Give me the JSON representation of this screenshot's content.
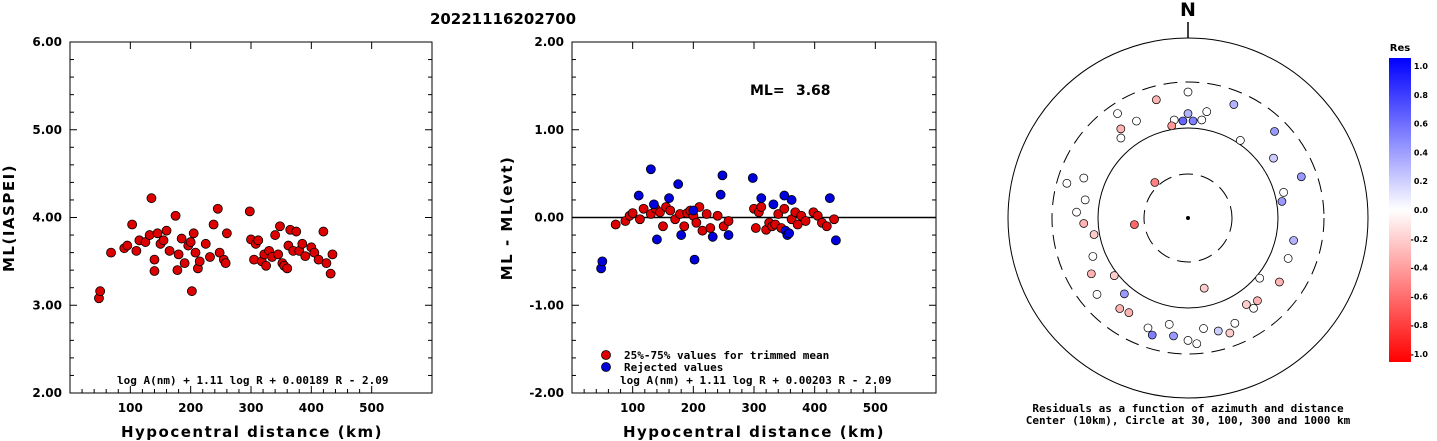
{
  "event_id": "20221116202700",
  "chart_data": [
    {
      "type": "scatter",
      "ylabel": "ML(IASPEI)",
      "xlabel": "Hypocentral distance (km)",
      "xlim": [
        0,
        600
      ],
      "ylim": [
        2.0,
        6.0
      ],
      "x_ticks": [
        "100",
        "200",
        "300",
        "400",
        "500"
      ],
      "y_ticks": [
        "2.00",
        "3.00",
        "4.00",
        "5.00",
        "6.00"
      ],
      "formula": "log A(nm) + 1.11 log R + 0.00189 R - 2.09",
      "points": [
        [
          48,
          3.08
        ],
        [
          50,
          3.16
        ],
        [
          68,
          3.6
        ],
        [
          90,
          3.65
        ],
        [
          95,
          3.68
        ],
        [
          103,
          3.92
        ],
        [
          110,
          3.62
        ],
        [
          115,
          3.74
        ],
        [
          125,
          3.72
        ],
        [
          132,
          3.8
        ],
        [
          135,
          4.22
        ],
        [
          140,
          3.52
        ],
        [
          140,
          3.39
        ],
        [
          145,
          3.82
        ],
        [
          150,
          3.7
        ],
        [
          155,
          3.74
        ],
        [
          160,
          3.85
        ],
        [
          165,
          3.62
        ],
        [
          175,
          4.02
        ],
        [
          178,
          3.4
        ],
        [
          180,
          3.58
        ],
        [
          185,
          3.76
        ],
        [
          190,
          3.48
        ],
        [
          196,
          3.68
        ],
        [
          200,
          3.72
        ],
        [
          202,
          3.16
        ],
        [
          205,
          3.82
        ],
        [
          208,
          3.6
        ],
        [
          212,
          3.42
        ],
        [
          215,
          3.5
        ],
        [
          225,
          3.7
        ],
        [
          232,
          3.55
        ],
        [
          238,
          3.92
        ],
        [
          245,
          4.1
        ],
        [
          248,
          3.6
        ],
        [
          255,
          3.52
        ],
        [
          258,
          3.48
        ],
        [
          260,
          3.82
        ],
        [
          298,
          4.07
        ],
        [
          300,
          3.75
        ],
        [
          305,
          3.52
        ],
        [
          308,
          3.7
        ],
        [
          312,
          3.74
        ],
        [
          318,
          3.5
        ],
        [
          322,
          3.58
        ],
        [
          325,
          3.45
        ],
        [
          330,
          3.62
        ],
        [
          335,
          3.55
        ],
        [
          340,
          3.8
        ],
        [
          345,
          3.58
        ],
        [
          348,
          3.9
        ],
        [
          352,
          3.48
        ],
        [
          355,
          3.45
        ],
        [
          360,
          3.42
        ],
        [
          362,
          3.68
        ],
        [
          365,
          3.86
        ],
        [
          370,
          3.62
        ],
        [
          375,
          3.84
        ],
        [
          380,
          3.62
        ],
        [
          385,
          3.7
        ],
        [
          390,
          3.56
        ],
        [
          400,
          3.66
        ],
        [
          405,
          3.6
        ],
        [
          412,
          3.52
        ],
        [
          420,
          3.84
        ],
        [
          425,
          3.48
        ],
        [
          432,
          3.36
        ],
        [
          435,
          3.58
        ]
      ]
    },
    {
      "type": "scatter",
      "ylabel": "ML - ML(evt)",
      "xlabel": "Hypocentral distance (km)",
      "xlim": [
        0,
        600
      ],
      "ylim": [
        -2.0,
        2.0
      ],
      "x_ticks": [
        "100",
        "200",
        "300",
        "400",
        "500"
      ],
      "y_ticks": [
        "-2.00",
        "-1.00",
        "0.00",
        "1.00",
        "2.00"
      ],
      "ml_label": "ML=",
      "ml_value": "3.68",
      "formula": "log A(nm) + 1.11 log R + 0.00203 R - 2.09",
      "reference_line": 0.0,
      "series": [
        {
          "name": "25%-75% values for trimmed mean",
          "color": "#dd0000",
          "points": [
            [
              72,
              -0.08
            ],
            [
              88,
              -0.04
            ],
            [
              95,
              0.02
            ],
            [
              100,
              0.05
            ],
            [
              112,
              -0.02
            ],
            [
              118,
              0.1
            ],
            [
              130,
              0.04
            ],
            [
              138,
              0.1
            ],
            [
              145,
              0.06
            ],
            [
              150,
              -0.1
            ],
            [
              155,
              0.12
            ],
            [
              162,
              0.08
            ],
            [
              170,
              -0.02
            ],
            [
              178,
              0.04
            ],
            [
              185,
              -0.1
            ],
            [
              190,
              0.05
            ],
            [
              195,
              0.08
            ],
            [
              200,
              0.02
            ],
            [
              205,
              -0.06
            ],
            [
              210,
              0.12
            ],
            [
              215,
              -0.15
            ],
            [
              222,
              0.04
            ],
            [
              228,
              -0.12
            ],
            [
              240,
              0.02
            ],
            [
              250,
              -0.1
            ],
            [
              258,
              -0.04
            ],
            [
              300,
              0.1
            ],
            [
              303,
              -0.12
            ],
            [
              308,
              0.06
            ],
            [
              312,
              0.12
            ],
            [
              320,
              -0.14
            ],
            [
              325,
              -0.06
            ],
            [
              330,
              -0.1
            ],
            [
              335,
              -0.08
            ],
            [
              340,
              0.04
            ],
            [
              345,
              -0.12
            ],
            [
              350,
              0.1
            ],
            [
              362,
              -0.02
            ],
            [
              368,
              0.06
            ],
            [
              372,
              -0.08
            ],
            [
              378,
              0.02
            ],
            [
              385,
              -0.04
            ],
            [
              398,
              0.06
            ],
            [
              405,
              0.02
            ],
            [
              412,
              -0.06
            ],
            [
              420,
              -0.1
            ],
            [
              432,
              -0.02
            ]
          ]
        },
        {
          "name": "Rejected values",
          "color": "#0000dd",
          "points": [
            [
              48,
              -0.58
            ],
            [
              50,
              -0.5
            ],
            [
              110,
              0.25
            ],
            [
              130,
              0.55
            ],
            [
              135,
              0.15
            ],
            [
              140,
              -0.25
            ],
            [
              160,
              0.22
            ],
            [
              175,
              0.38
            ],
            [
              180,
              -0.2
            ],
            [
              200,
              0.08
            ],
            [
              202,
              -0.48
            ],
            [
              232,
              -0.22
            ],
            [
              245,
              0.26
            ],
            [
              248,
              0.48
            ],
            [
              258,
              -0.2
            ],
            [
              298,
              0.45
            ],
            [
              312,
              0.22
            ],
            [
              332,
              0.15
            ],
            [
              350,
              0.25
            ],
            [
              352,
              -0.15
            ],
            [
              355,
              -0.2
            ],
            [
              358,
              -0.18
            ],
            [
              362,
              0.2
            ],
            [
              425,
              0.22
            ],
            [
              435,
              -0.26
            ]
          ]
        }
      ]
    },
    {
      "type": "polar-scatter",
      "north_label": "N",
      "caption_line1": "Residuals as a function of azimuth and distance",
      "caption_line2": "Center (10km), Circle at 30, 100, 300 and 1000 km",
      "colorbar": {
        "title": "Res",
        "ticks": [
          "1.0",
          "0.8",
          "0.6",
          "0.4",
          "0.2",
          "0.0",
          "-0.2",
          "-0.4",
          "-0.6",
          "-0.8",
          "-1.0"
        ],
        "max_color": "#0000ff",
        "zero_color": "#ffffff",
        "min_color": "#ff0000"
      },
      "rings_km": [
        30,
        100,
        300,
        1000
      ],
      "stations": [
        {
          "az": 0,
          "r": 0.7,
          "res": 0.0
        },
        {
          "az": 3,
          "r": 0.54,
          "res": 0.5
        },
        {
          "az": -3,
          "r": 0.54,
          "res": 0.6
        },
        {
          "az": 0,
          "r": 0.58,
          "res": 0.3
        },
        {
          "az": -8,
          "r": 0.55,
          "res": 0.0
        },
        {
          "az": 8,
          "r": 0.55,
          "res": 0.0
        },
        {
          "az": -15,
          "r": 0.68,
          "res": -0.3
        },
        {
          "az": 22,
          "r": 0.68,
          "res": 0.3
        },
        {
          "az": -28,
          "r": 0.61,
          "res": 0.0
        },
        {
          "az": 10,
          "r": 0.6,
          "res": 0.0
        },
        {
          "az": -34,
          "r": 0.7,
          "res": 0.0
        },
        {
          "az": -37,
          "r": 0.62,
          "res": -0.3
        },
        {
          "az": -40,
          "r": 0.58,
          "res": 0.0
        },
        {
          "az": -10,
          "r": 0.52,
          "res": -0.4
        },
        {
          "az": 34,
          "r": 0.52,
          "res": 0.0
        },
        {
          "az": 45,
          "r": 0.68,
          "res": 0.4
        },
        {
          "az": 55,
          "r": 0.58,
          "res": 0.2
        },
        {
          "az": 70,
          "r": 0.67,
          "res": 0.4
        },
        {
          "az": 75,
          "r": 0.55,
          "res": 0.0
        },
        {
          "az": 80,
          "r": 0.53,
          "res": 0.4
        },
        {
          "az": -74,
          "r": 0.7,
          "res": 0.0
        },
        {
          "az": -69,
          "r": 0.62,
          "res": 0.0
        },
        {
          "az": -87,
          "r": 0.62,
          "res": 0.0
        },
        {
          "az": -80,
          "r": 0.58,
          "res": 0.0
        },
        {
          "az": -93,
          "r": 0.58,
          "res": -0.3
        },
        {
          "az": -100,
          "r": 0.53,
          "res": -0.2
        },
        {
          "az": -112,
          "r": 0.57,
          "res": 0.0
        },
        {
          "az": -128,
          "r": 0.52,
          "res": -0.2
        },
        {
          "az": -120,
          "r": 0.62,
          "res": -0.3
        },
        {
          "az": -130,
          "r": 0.66,
          "res": 0.0
        },
        {
          "az": -143,
          "r": 0.63,
          "res": -0.3
        },
        {
          "az": -148,
          "r": 0.62,
          "res": -0.3
        },
        {
          "az": -140,
          "r": 0.55,
          "res": 0.4
        },
        {
          "az": -160,
          "r": 0.65,
          "res": 0.0
        },
        {
          "az": -163,
          "r": 0.68,
          "res": 0.5
        },
        {
          "az": -170,
          "r": 0.6,
          "res": 0.0
        },
        {
          "az": -173,
          "r": 0.66,
          "res": 0.4
        },
        {
          "az": 172,
          "r": 0.62,
          "res": 0.0
        },
        {
          "az": 165,
          "r": 0.65,
          "res": 0.2
        },
        {
          "az": 160,
          "r": 0.68,
          "res": -0.2
        },
        {
          "az": 156,
          "r": 0.64,
          "res": 0.0
        },
        {
          "az": 176,
          "r": 0.7,
          "res": 0.0
        },
        {
          "az": 144,
          "r": 0.62,
          "res": 0.0
        },
        {
          "az": 146,
          "r": 0.58,
          "res": -0.2
        },
        {
          "az": 140,
          "r": 0.6,
          "res": -0.3
        },
        {
          "az": 130,
          "r": 0.52,
          "res": 0.0
        },
        {
          "az": 125,
          "r": 0.62,
          "res": -0.3
        },
        {
          "az": 112,
          "r": 0.6,
          "res": 0.0
        },
        {
          "az": 102,
          "r": 0.6,
          "res": 0.3
        },
        {
          "az": -180,
          "r": 0.68,
          "res": 0.0
        },
        {
          "az": -43,
          "r": 0.27,
          "res": -0.5
        },
        {
          "az": -97,
          "r": 0.3,
          "res": -0.6
        },
        {
          "az": 167,
          "r": 0.4,
          "res": -0.2
        }
      ]
    }
  ]
}
